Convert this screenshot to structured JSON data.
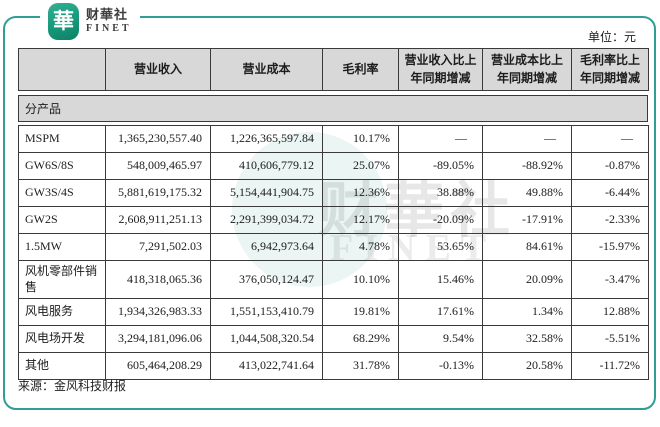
{
  "logo": {
    "icon_char": "華",
    "name": "财華社",
    "subname": "FINET"
  },
  "unit_label": "单位：元",
  "watermark": {
    "line1": "财華社",
    "line2": "FINET"
  },
  "source": "来源：金风科技财报",
  "colors": {
    "frame_teal": "#2f9e94",
    "logo_green": "#16987a",
    "header_bg": "#d8d8d8",
    "border": "#3a3a3a"
  },
  "table": {
    "section_label": "分产品",
    "headers": [
      "",
      "营业收入",
      "营业成本",
      "毛利率",
      "营业收入比上\n年同期增减",
      "营业成本比上\n年同期增减",
      "毛利率比上\n年同期增减"
    ],
    "rows": [
      {
        "label": "MSPM",
        "revenue": "1,365,230,557.40",
        "cost": "1,226,365,597.84",
        "margin": "10.17%",
        "rev_yoy": "—",
        "cost_yoy": "—",
        "margin_yoy": "—"
      },
      {
        "label": "GW6S/8S",
        "revenue": "548,009,465.97",
        "cost": "410,606,779.12",
        "margin": "25.07%",
        "rev_yoy": "-89.05%",
        "cost_yoy": "-88.92%",
        "margin_yoy": "-0.87%"
      },
      {
        "label": "GW3S/4S",
        "revenue": "5,881,619,175.32",
        "cost": "5,154,441,904.75",
        "margin": "12.36%",
        "rev_yoy": "38.88%",
        "cost_yoy": "49.88%",
        "margin_yoy": "-6.44%"
      },
      {
        "label": "GW2S",
        "revenue": "2,608,911,251.13",
        "cost": "2,291,399,034.72",
        "margin": "12.17%",
        "rev_yoy": "-20.09%",
        "cost_yoy": "-17.91%",
        "margin_yoy": "-2.33%"
      },
      {
        "label": "1.5MW",
        "revenue": "7,291,502.03",
        "cost": "6,942,973.64",
        "margin": "4.78%",
        "rev_yoy": "53.65%",
        "cost_yoy": "84.61%",
        "margin_yoy": "-15.97%"
      },
      {
        "label": "风机零部件销售",
        "revenue": "418,318,065.36",
        "cost": "376,050,124.47",
        "margin": "10.10%",
        "rev_yoy": "15.46%",
        "cost_yoy": "20.09%",
        "margin_yoy": "-3.47%"
      },
      {
        "label": "风电服务",
        "revenue": "1,934,326,983.33",
        "cost": "1,551,153,410.79",
        "margin": "19.81%",
        "rev_yoy": "17.61%",
        "cost_yoy": "1.34%",
        "margin_yoy": "12.88%"
      },
      {
        "label": "风电场开发",
        "revenue": "3,294,181,096.06",
        "cost": "1,044,508,320.54",
        "margin": "68.29%",
        "rev_yoy": "9.54%",
        "cost_yoy": "32.58%",
        "margin_yoy": "-5.51%"
      },
      {
        "label": "其他",
        "revenue": "605,464,208.29",
        "cost": "413,022,741.64",
        "margin": "31.78%",
        "rev_yoy": "-0.13%",
        "cost_yoy": "20.58%",
        "margin_yoy": "-11.72%"
      }
    ]
  }
}
